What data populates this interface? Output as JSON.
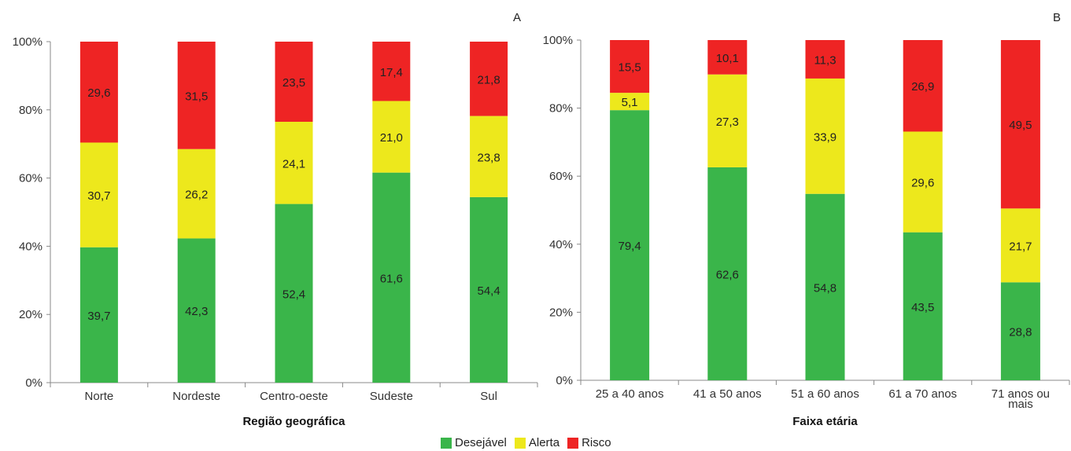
{
  "colors": {
    "desejavel": "#3ab54a",
    "alerta": "#ede81c",
    "risco": "#ee2424",
    "axis": "#888888"
  },
  "legend": [
    "Desejável",
    "Alerta",
    "Risco"
  ],
  "chart_data": [
    {
      "type": "bar",
      "stacked": true,
      "panel_label": "A",
      "title": "",
      "xlabel": "Região geográfica",
      "ylabel": "",
      "ylim": [
        0,
        100
      ],
      "yticks": [
        "0%",
        "20%",
        "40%",
        "60%",
        "80%",
        "100%"
      ],
      "categories": [
        "Norte",
        "Nordeste",
        "Centro-oeste",
        "Sudeste",
        "Sul"
      ],
      "series": [
        {
          "name": "Desejável",
          "values": [
            39.7,
            42.3,
            52.4,
            61.6,
            54.4
          ],
          "labels": [
            "39,7",
            "42,3",
            "52,4",
            "61,6",
            "54,4"
          ]
        },
        {
          "name": "Alerta",
          "values": [
            30.7,
            26.2,
            24.1,
            21.0,
            23.8
          ],
          "labels": [
            "30,7",
            "26,2",
            "24,1",
            "21,0",
            "23,8"
          ]
        },
        {
          "name": "Risco",
          "values": [
            29.6,
            31.5,
            23.5,
            17.4,
            21.8
          ],
          "labels": [
            "29,6",
            "31,5",
            "23,5",
            "17,4",
            "21,8"
          ]
        }
      ]
    },
    {
      "type": "bar",
      "stacked": true,
      "panel_label": "B",
      "title": "",
      "xlabel": "Faixa etária",
      "ylabel": "",
      "ylim": [
        0,
        100
      ],
      "yticks": [
        "0%",
        "20%",
        "40%",
        "60%",
        "80%",
        "100%"
      ],
      "categories": [
        "25 a 40 anos",
        "41 a 50 anos",
        "51 a 60 anos",
        "61 a 70 anos",
        "71 anos ou mais"
      ],
      "series": [
        {
          "name": "Desejável",
          "values": [
            79.4,
            62.6,
            54.8,
            43.5,
            28.8
          ],
          "labels": [
            "79,4",
            "62,6",
            "54,8",
            "43,5",
            "28,8"
          ]
        },
        {
          "name": "Alerta",
          "values": [
            5.1,
            27.3,
            33.9,
            29.6,
            21.7
          ],
          "labels": [
            "5,1",
            "27,3",
            "33,9",
            "29,6",
            "21,7"
          ]
        },
        {
          "name": "Risco",
          "values": [
            15.5,
            10.1,
            11.3,
            26.9,
            49.5
          ],
          "labels": [
            "15,5",
            "10,1",
            "11,3",
            "26,9",
            "49,5"
          ]
        }
      ]
    }
  ]
}
